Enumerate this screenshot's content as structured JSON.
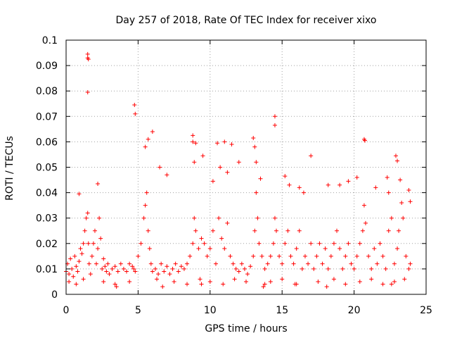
{
  "chart_data": {
    "type": "scatter",
    "title": "Day 257 of 2018, Rate Of TEC Index for receiver xixo",
    "xlabel": "GPS time / hours",
    "ylabel": "ROTI / TECUs",
    "xlim": [
      0,
      25
    ],
    "ylim": [
      0,
      0.1
    ],
    "x_ticks": [
      "0",
      "5",
      "10",
      "15",
      "20",
      "25"
    ],
    "y_ticks": [
      "0",
      "0.01",
      "0.02",
      "0.03",
      "0.04",
      "0.05",
      "0.06",
      "0.07",
      "0.08",
      "0.09",
      "0.1"
    ],
    "grid": true,
    "marker": "plus",
    "color": "#ff0000",
    "series": [
      {
        "x": [
          0.0,
          0.1,
          0.2,
          0.3,
          0.4,
          0.5,
          0.6,
          0.7,
          0.8,
          0.9,
          1.0,
          1.1,
          1.2,
          1.3,
          1.4,
          1.5,
          1.55,
          1.6,
          1.7,
          1.8,
          1.9,
          2.0,
          2.1,
          2.2,
          2.3,
          2.4,
          2.5,
          2.6,
          2.7,
          2.8,
          2.9,
          3.0,
          3.2,
          3.4,
          3.6,
          3.8,
          4.0,
          4.2,
          4.4,
          4.6,
          4.7,
          4.8,
          5.0,
          5.2,
          5.4,
          5.5,
          5.6,
          5.7,
          5.8,
          5.9,
          6.0,
          6.2,
          6.4,
          6.6,
          6.8,
          7.0,
          7.2,
          7.4,
          7.6,
          7.8,
          8.0,
          8.2,
          8.4,
          8.6,
          8.8,
          8.9,
          9.0,
          9.2,
          9.4,
          9.6,
          9.8,
          10.0,
          10.2,
          10.4,
          10.6,
          10.8,
          11.0,
          11.2,
          11.4,
          11.6,
          11.8,
          12.0,
          12.2,
          12.4,
          12.6,
          12.8,
          13.0,
          13.1,
          13.2,
          13.3,
          13.4,
          13.6,
          13.8,
          14.0,
          14.2,
          14.4,
          14.5,
          14.6,
          14.8,
          15.0,
          15.2,
          15.4,
          15.6,
          15.8,
          16.0,
          16.2,
          16.4,
          16.6,
          16.8,
          17.0,
          17.2,
          17.4,
          17.6,
          17.8,
          18.0,
          18.2,
          18.4,
          18.6,
          18.8,
          19.0,
          19.2,
          19.4,
          19.6,
          19.8,
          20.0,
          20.2,
          20.4,
          20.6,
          20.7,
          20.8,
          21.0,
          21.2,
          21.4,
          21.6,
          21.8,
          22.0,
          22.2,
          22.4,
          22.6,
          22.8,
          23.0,
          23.1,
          23.2,
          23.4,
          23.6,
          23.8,
          23.9,
          1.5,
          1.5,
          1.55,
          1.5,
          4.75,
          4.8,
          8.8,
          8.8,
          9.0,
          9.5,
          10.5,
          11.0,
          11.5,
          13.0,
          13.1,
          13.2,
          14.5,
          14.5,
          15.2,
          17.0,
          20.7,
          20.75,
          22.3,
          22.9,
          23.0,
          23.8,
          23.9,
          0.9,
          2.2,
          5.5,
          5.7,
          6.0,
          6.5,
          7.0,
          8.9,
          10.2,
          10.7,
          11.2,
          12.0,
          13.5,
          15.5,
          16.2,
          16.5,
          18.2,
          19.0,
          19.6,
          20.2,
          21.5,
          22.4,
          23.3,
          0.2,
          0.7,
          1.2,
          2.6,
          3.4,
          4.4,
          6.3,
          7.5,
          8.4,
          9.3,
          10.0,
          10.9,
          11.7,
          12.5,
          13.8,
          14.2,
          15.0,
          16.0,
          17.5,
          18.6,
          19.4,
          20.4,
          21.2,
          22.0,
          22.8,
          23.5,
          3.5,
          6.7,
          9.4,
          13.7,
          15.9,
          18.1,
          22.6
        ],
        "y": [
          0.009,
          0.012,
          0.008,
          0.014,
          0.01,
          0.007,
          0.015,
          0.011,
          0.009,
          0.013,
          0.018,
          0.016,
          0.02,
          0.025,
          0.03,
          0.032,
          0.02,
          0.012,
          0.008,
          0.015,
          0.02,
          0.025,
          0.012,
          0.018,
          0.03,
          0.022,
          0.01,
          0.014,
          0.011,
          0.009,
          0.012,
          0.008,
          0.01,
          0.011,
          0.009,
          0.012,
          0.01,
          0.009,
          0.012,
          0.011,
          0.01,
          0.009,
          0.015,
          0.02,
          0.03,
          0.035,
          0.04,
          0.025,
          0.018,
          0.012,
          0.009,
          0.01,
          0.008,
          0.012,
          0.009,
          0.011,
          0.008,
          0.01,
          0.012,
          0.009,
          0.011,
          0.01,
          0.012,
          0.015,
          0.02,
          0.03,
          0.025,
          0.018,
          0.022,
          0.02,
          0.015,
          0.018,
          0.025,
          0.012,
          0.03,
          0.022,
          0.018,
          0.028,
          0.015,
          0.012,
          0.01,
          0.009,
          0.012,
          0.01,
          0.008,
          0.011,
          0.015,
          0.025,
          0.04,
          0.03,
          0.02,
          0.015,
          0.01,
          0.012,
          0.015,
          0.02,
          0.03,
          0.025,
          0.015,
          0.012,
          0.02,
          0.025,
          0.015,
          0.012,
          0.018,
          0.025,
          0.01,
          0.015,
          0.012,
          0.02,
          0.01,
          0.015,
          0.02,
          0.012,
          0.018,
          0.01,
          0.015,
          0.02,
          0.025,
          0.018,
          0.01,
          0.015,
          0.02,
          0.012,
          0.01,
          0.015,
          0.02,
          0.025,
          0.035,
          0.028,
          0.015,
          0.01,
          0.018,
          0.012,
          0.02,
          0.015,
          0.01,
          0.025,
          0.03,
          0.012,
          0.018,
          0.025,
          0.045,
          0.03,
          0.015,
          0.01,
          0.012,
          0.0945,
          0.093,
          0.0925,
          0.0795,
          0.0745,
          0.071,
          0.0625,
          0.06,
          0.0595,
          0.0545,
          0.0595,
          0.06,
          0.059,
          0.0615,
          0.058,
          0.052,
          0.07,
          0.0665,
          0.0465,
          0.0545,
          0.061,
          0.0605,
          0.046,
          0.0545,
          0.0525,
          0.041,
          0.0365,
          0.0395,
          0.0435,
          0.058,
          0.061,
          0.064,
          0.05,
          0.047,
          0.052,
          0.0445,
          0.05,
          0.048,
          0.052,
          0.0455,
          0.043,
          0.042,
          0.04,
          0.043,
          0.043,
          0.0445,
          0.046,
          0.042,
          0.04,
          0.036,
          0.005,
          0.004,
          0.006,
          0.005,
          0.004,
          0.005,
          0.006,
          0.005,
          0.004,
          0.006,
          0.005,
          0.004,
          0.006,
          0.005,
          0.004,
          0.005,
          0.006,
          0.004,
          0.005,
          0.006,
          0.004,
          0.005,
          0.006,
          0.004,
          0.005,
          0.006,
          0.003,
          0.003,
          0.004,
          0.003,
          0.004,
          0.003,
          0.004
        ]
      }
    ]
  }
}
